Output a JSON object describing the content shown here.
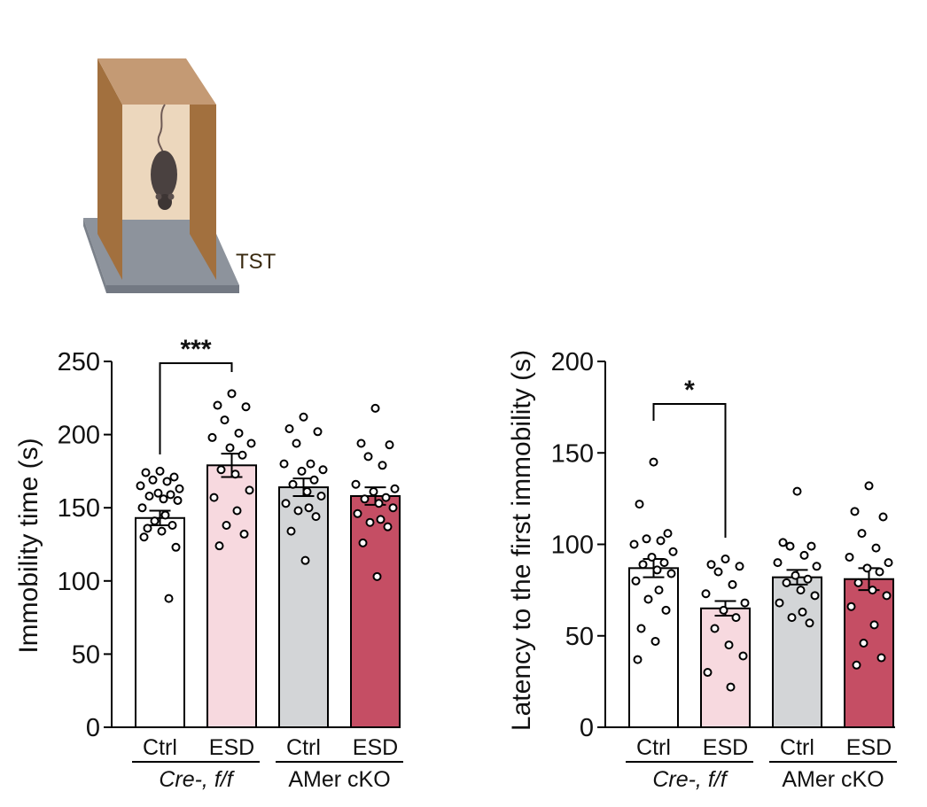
{
  "apparatus": {
    "label": "TST"
  },
  "colors": {
    "ctrl_cre": "#ffffff",
    "esd_cre": "#f7d9df",
    "ctrl_cko": "#d3d5d7",
    "esd_cko": "#c54e64",
    "box_wood": "#a2703e",
    "box_top": "#c49a74",
    "box_back": "#ecd7bd",
    "base": "#8d939c",
    "mouse": "#4a4140"
  },
  "chart_data": [
    {
      "type": "bar",
      "title": "",
      "ylabel": "Immobility time (s)",
      "xlabel": "",
      "ylim": [
        0,
        250
      ],
      "yticks": [
        0,
        50,
        100,
        150,
        200,
        250
      ],
      "categories": [
        "Ctrl",
        "ESD",
        "Ctrl",
        "ESD"
      ],
      "groups": [
        {
          "label": "Cre-, f/f",
          "italic": true,
          "categories": [
            0,
            1
          ]
        },
        {
          "label": "AMer cKO",
          "italic": false,
          "categories": [
            2,
            3
          ]
        }
      ],
      "values": [
        143,
        179,
        164,
        158
      ],
      "sem": [
        5,
        8,
        6,
        6
      ],
      "points": [
        [
          175,
          174,
          171,
          169,
          168,
          165,
          163,
          160,
          159,
          158,
          156,
          155,
          150,
          145,
          141,
          138,
          136,
          134,
          130,
          123,
          88
        ],
        [
          228,
          220,
          219,
          210,
          201,
          198,
          194,
          191,
          186,
          176,
          173,
          162,
          157,
          148,
          138,
          132,
          124
        ],
        [
          212,
          204,
          202,
          194,
          180,
          180,
          176,
          175,
          169,
          166,
          161,
          158,
          153,
          150,
          148,
          144,
          134,
          114
        ],
        [
          218,
          194,
          193,
          185,
          179,
          166,
          163,
          161,
          157,
          156,
          153,
          150,
          146,
          142,
          140,
          137,
          126,
          103
        ]
      ],
      "significance": [
        {
          "between": [
            0,
            1
          ],
          "label": "***"
        }
      ],
      "grid": false
    },
    {
      "type": "bar",
      "title": "",
      "ylabel": "Latency to the first immobility (s)",
      "xlabel": "",
      "ylim": [
        0,
        200
      ],
      "yticks": [
        0,
        50,
        100,
        150,
        200
      ],
      "categories": [
        "Ctrl",
        "ESD",
        "Ctrl",
        "ESD"
      ],
      "groups": [
        {
          "label": "Cre-, f/f",
          "italic": true,
          "categories": [
            0,
            1
          ]
        },
        {
          "label": "AMer cKO",
          "italic": false,
          "categories": [
            2,
            3
          ]
        }
      ],
      "values": [
        87,
        65,
        82,
        81
      ],
      "sem": [
        5,
        4,
        4,
        6
      ],
      "points": [
        [
          145,
          122,
          106,
          103,
          102,
          100,
          96,
          93,
          90,
          89,
          86,
          84,
          80,
          75,
          70,
          64,
          54,
          47,
          37
        ],
        [
          92,
          89,
          88,
          85,
          78,
          73,
          68,
          64,
          60,
          54,
          45,
          39,
          30,
          22
        ],
        [
          129,
          101,
          99,
          99,
          94,
          90,
          88,
          83,
          81,
          79,
          75,
          72,
          68,
          63,
          60,
          57
        ],
        [
          132,
          118,
          115,
          106,
          98,
          93,
          90,
          87,
          85,
          79,
          75,
          72,
          66,
          56,
          46,
          38,
          34
        ]
      ],
      "significance": [
        {
          "between": [
            0,
            1
          ],
          "label": "*"
        }
      ],
      "grid": false
    }
  ]
}
